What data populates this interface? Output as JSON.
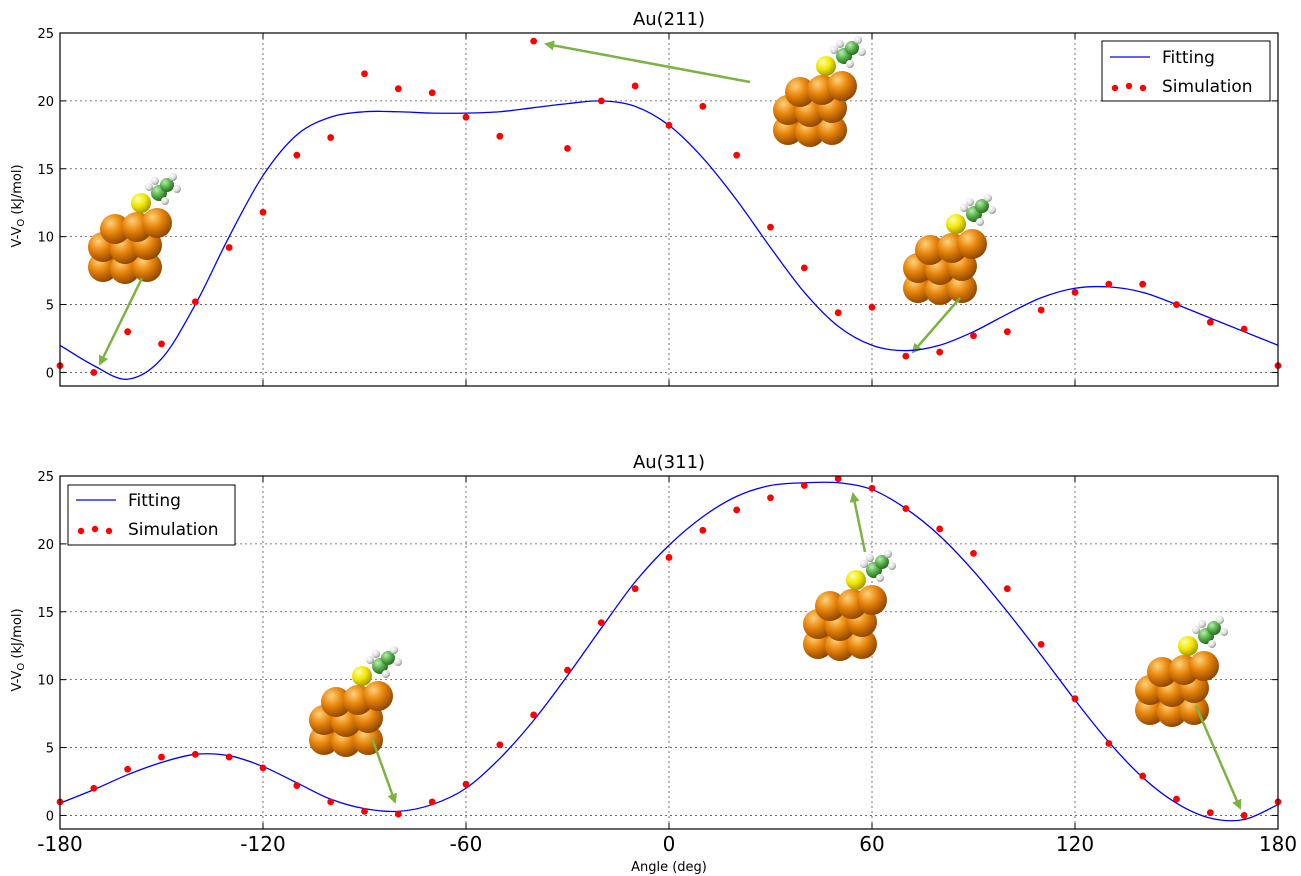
{
  "chart_data": [
    {
      "type": "line",
      "title": "Au(211)",
      "xlabel": "",
      "ylabel": "V-V",
      "ylabel_sub": "O",
      "ylabel_unit": "  (kJ/mol)",
      "xlim": [
        -180,
        180
      ],
      "ylim": [
        -1,
        25
      ],
      "grid": true,
      "legend_position": "top-right",
      "yticks": [
        0,
        5,
        10,
        15,
        20,
        25
      ],
      "series": [
        {
          "name": "Fitting",
          "kind": "line",
          "color": "#0000ff",
          "x": [
            -180,
            -170,
            -160,
            -150,
            -140,
            -130,
            -120,
            -110,
            -100,
            -90,
            -80,
            -70,
            -60,
            -50,
            -40,
            -30,
            -20,
            -10,
            0,
            10,
            20,
            30,
            40,
            50,
            60,
            70,
            80,
            90,
            100,
            110,
            120,
            130,
            140,
            150,
            160,
            170,
            180
          ],
          "y": [
            2.0,
            0.5,
            -0.5,
            1.0,
            5.0,
            10.0,
            14.5,
            17.5,
            18.8,
            19.2,
            19.2,
            19.1,
            19.1,
            19.2,
            19.5,
            19.8,
            20.0,
            19.6,
            18.2,
            15.8,
            12.7,
            9.2,
            5.9,
            3.4,
            2.0,
            1.6,
            2.0,
            3.0,
            4.3,
            5.5,
            6.2,
            6.3,
            5.9,
            5.0,
            4.0,
            3.0,
            2.0
          ]
        },
        {
          "name": "Simulation",
          "kind": "scatter",
          "color": "#ff0000",
          "x": [
            -180,
            -170,
            -160,
            -150,
            -140,
            -130,
            -120,
            -110,
            -100,
            -90,
            -80,
            -70,
            -60,
            -50,
            -40,
            -30,
            -20,
            -10,
            0,
            10,
            20,
            30,
            40,
            50,
            60,
            70,
            80,
            90,
            100,
            110,
            120,
            130,
            140,
            150,
            160,
            170,
            180
          ],
          "y": [
            0.5,
            0.0,
            3.0,
            2.1,
            5.2,
            9.2,
            11.8,
            16.0,
            17.3,
            22.0,
            20.9,
            20.6,
            18.8,
            17.4,
            24.4,
            16.5,
            20.0,
            21.1,
            18.2,
            19.6,
            16.0,
            10.7,
            7.7,
            4.4,
            4.8,
            1.2,
            1.5,
            2.7,
            3.0,
            4.6,
            5.9,
            6.5,
            6.5,
            5.0,
            3.7,
            3.2,
            0.5
          ]
        }
      ]
    },
    {
      "type": "line",
      "title": "Au(311)",
      "xlabel": "Angle (deg)",
      "ylabel": "V-V",
      "ylabel_sub": "O",
      "ylabel_unit": "  (kJ/mol)",
      "xlim": [
        -180,
        180
      ],
      "ylim": [
        -1,
        25
      ],
      "grid": true,
      "legend_position": "top-left",
      "xticks": [
        -180,
        -120,
        -60,
        0,
        60,
        120,
        180
      ],
      "yticks": [
        0,
        5,
        10,
        15,
        20,
        25
      ],
      "series": [
        {
          "name": "Fitting",
          "kind": "line",
          "color": "#0000ff",
          "x": [
            -180,
            -170,
            -160,
            -150,
            -140,
            -130,
            -120,
            -110,
            -100,
            -90,
            -80,
            -70,
            -60,
            -50,
            -40,
            -30,
            -20,
            -10,
            0,
            10,
            20,
            30,
            40,
            50,
            60,
            70,
            80,
            90,
            100,
            110,
            120,
            130,
            140,
            150,
            160,
            170,
            180
          ],
          "y": [
            0.9,
            1.9,
            3.0,
            3.9,
            4.5,
            4.4,
            3.6,
            2.4,
            1.2,
            0.5,
            0.3,
            0.8,
            2.0,
            4.2,
            7.0,
            10.3,
            13.8,
            17.2,
            19.9,
            22.0,
            23.5,
            24.3,
            24.5,
            24.5,
            24.0,
            22.6,
            20.6,
            18.0,
            15.0,
            11.8,
            8.5,
            5.4,
            2.8,
            0.9,
            -0.2,
            -0.3,
            0.8
          ]
        },
        {
          "name": "Simulation",
          "kind": "scatter",
          "color": "#ff0000",
          "x": [
            -180,
            -170,
            -160,
            -150,
            -140,
            -130,
            -120,
            -110,
            -100,
            -90,
            -80,
            -70,
            -60,
            -50,
            -40,
            -30,
            -20,
            -10,
            0,
            10,
            20,
            30,
            40,
            50,
            60,
            70,
            80,
            90,
            100,
            110,
            120,
            130,
            140,
            150,
            160,
            170,
            180
          ],
          "y": [
            1.0,
            2.0,
            3.4,
            4.3,
            4.5,
            4.3,
            3.5,
            2.2,
            1.0,
            0.3,
            0.1,
            1.0,
            2.3,
            5.2,
            7.4,
            10.7,
            14.2,
            16.7,
            19.0,
            21.0,
            22.5,
            23.4,
            24.3,
            24.8,
            24.1,
            22.6,
            21.1,
            19.3,
            16.7,
            12.6,
            8.6,
            5.3,
            2.9,
            1.2,
            0.2,
            0.0,
            1.0
          ]
        }
      ]
    }
  ],
  "colors": {
    "fit_line": "#0000ff",
    "sim_points": "#ff0000",
    "arrow": "#7cb342",
    "gold_atom": "#e8850c",
    "sulfur_atom": "#f2e600",
    "carbon_atom": "#57b04b",
    "hydrogen_atom": "#e0e0e0"
  },
  "insets": [
    {
      "name": "molecule-inset-211-a",
      "icon": "au-surface-thiolate-molecule",
      "x": -170,
      "y": 0
    },
    {
      "name": "molecule-inset-211-b",
      "icon": "au-surface-thiolate-molecule",
      "x": -40,
      "y": 24.4
    },
    {
      "name": "molecule-inset-211-c",
      "icon": "au-surface-thiolate-molecule",
      "x": 70,
      "y": 1.2
    },
    {
      "name": "molecule-inset-311-a",
      "icon": "au-surface-thiolate-molecule",
      "x": -80,
      "y": 0.5
    },
    {
      "name": "molecule-inset-311-b",
      "icon": "au-surface-thiolate-molecule",
      "x": 54,
      "y": 24.5
    },
    {
      "name": "molecule-inset-311-c",
      "icon": "au-surface-thiolate-molecule",
      "x": 170,
      "y": 0.0
    }
  ]
}
